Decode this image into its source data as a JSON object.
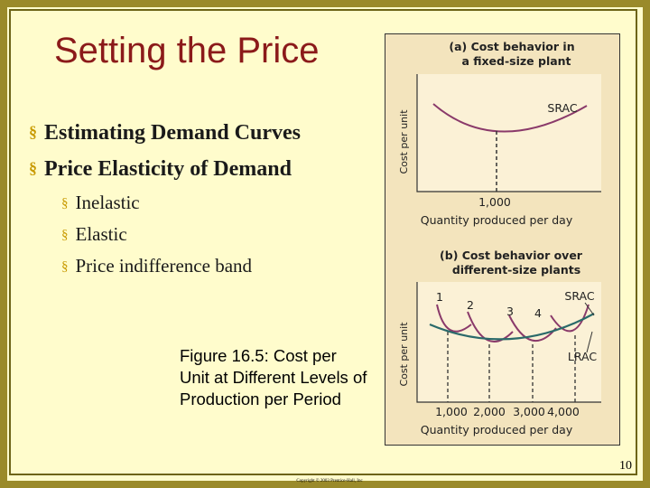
{
  "slide": {
    "title": "Setting the Price",
    "bullets": [
      "Estimating Demand Curves",
      "Price Elasticity of Demand"
    ],
    "sub_bullets": [
      "Inelastic",
      "Elastic",
      "Price indifference band"
    ],
    "caption": "Figure 16.5: Cost per Unit at Different Levels of Production per Period",
    "page_number": "10",
    "copyright": "Copyright © 2003 Prentice-Hall, Inc",
    "figure": {
      "panel_a": {
        "title_lines": [
          "(a) Cost behavior in",
          "a fixed-size plant"
        ],
        "curve_label": "SRAC",
        "y_label": "Cost per unit",
        "x_tick": "1,000",
        "x_label": "Quantity produced per day"
      },
      "panel_b": {
        "title_lines": [
          "(b) Cost behavior over",
          "different-size plants"
        ],
        "plant_labels": [
          "1",
          "2",
          "3",
          "4"
        ],
        "srac_label": "SRAC",
        "lrac_label": "LRAC",
        "y_label": "Cost per unit",
        "x_ticks": [
          "1,000",
          "2,000",
          "3,000",
          "4,000"
        ],
        "x_label": "Quantity produced per day"
      }
    }
  }
}
